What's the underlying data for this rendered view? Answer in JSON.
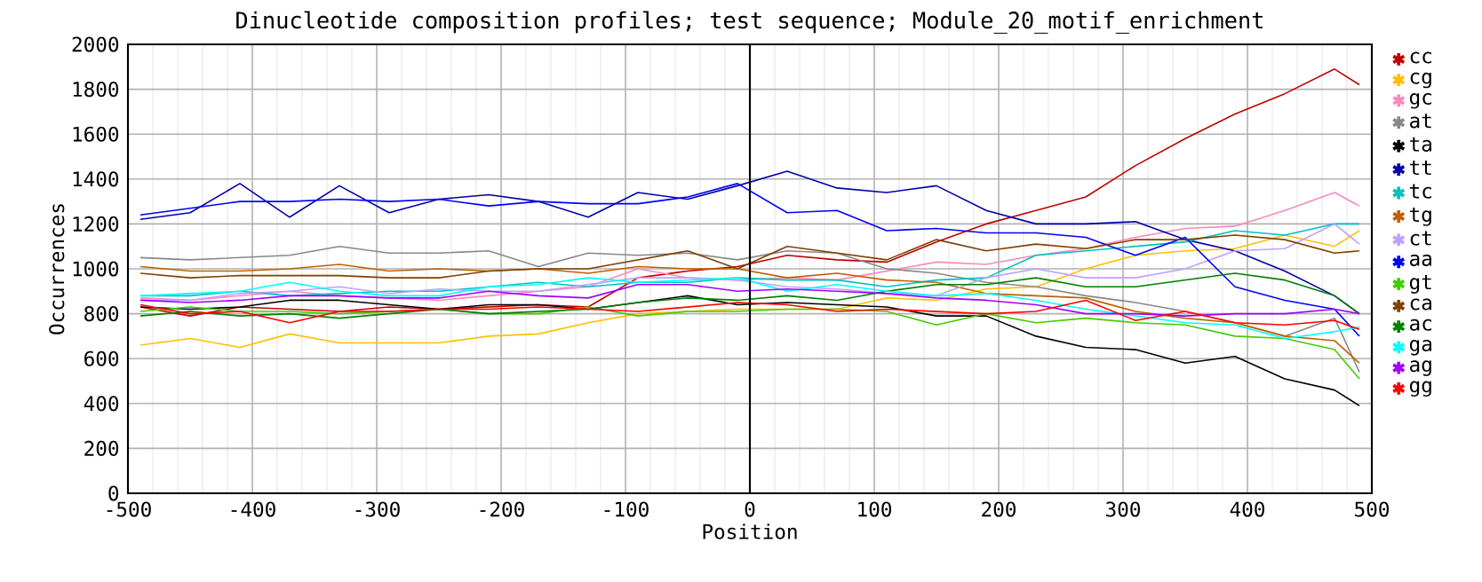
{
  "chart_data": {
    "type": "line",
    "title": "Dinucleotide composition profiles; test sequence; Module_20_motif_enrichment",
    "xlabel": "Position",
    "ylabel": "Occurrences",
    "x": [
      -490,
      -450,
      -410,
      -370,
      -330,
      -290,
      -250,
      -210,
      -170,
      -130,
      -90,
      -50,
      -10,
      30,
      70,
      110,
      150,
      190,
      230,
      270,
      310,
      350,
      390,
      430,
      470,
      490
    ],
    "xlim": [
      -500,
      500
    ],
    "ylim": [
      0,
      2000
    ],
    "xticks": [
      -500,
      -400,
      -300,
      -200,
      -100,
      0,
      100,
      200,
      300,
      400,
      500
    ],
    "yticks": [
      0,
      200,
      400,
      600,
      800,
      1000,
      1200,
      1400,
      1600,
      1800,
      2000
    ],
    "grid": true,
    "legend": "right",
    "marker": "none",
    "line_style": "solid",
    "ref_lines": [
      {
        "axis": "x",
        "value": 0,
        "color": "#000000"
      }
    ],
    "series": [
      {
        "name": "cc",
        "color": "#c00000",
        "values": [
          830,
          790,
          830,
          820,
          810,
          830,
          820,
          830,
          840,
          830,
          960,
          990,
          1010,
          1060,
          1040,
          1030,
          1120,
          1200,
          1260,
          1320,
          1460,
          1580,
          1690,
          1780,
          1890,
          1820
        ]
      },
      {
        "name": "cg",
        "color": "#ffc000",
        "values": [
          660,
          690,
          650,
          710,
          670,
          670,
          670,
          700,
          710,
          760,
          800,
          810,
          820,
          820,
          820,
          870,
          860,
          910,
          920,
          1000,
          1060,
          1080,
          1090,
          1150,
          1100,
          1170
        ]
      },
      {
        "name": "gc",
        "color": "#ff88bb",
        "values": [
          870,
          860,
          880,
          900,
          880,
          870,
          860,
          880,
          900,
          920,
          1000,
          960,
          950,
          960,
          950,
          990,
          1030,
          1020,
          1060,
          1090,
          1140,
          1180,
          1190,
          1260,
          1340,
          1280
        ]
      },
      {
        "name": "at",
        "color": "#888888",
        "values": [
          1050,
          1040,
          1050,
          1060,
          1100,
          1070,
          1070,
          1080,
          1010,
          1070,
          1060,
          1070,
          1040,
          1080,
          1070,
          1000,
          980,
          940,
          920,
          880,
          850,
          810,
          760,
          700,
          780,
          540
        ]
      },
      {
        "name": "ta",
        "color": "#000000",
        "values": [
          830,
          820,
          830,
          860,
          860,
          840,
          820,
          840,
          840,
          820,
          850,
          880,
          840,
          850,
          840,
          830,
          790,
          790,
          700,
          650,
          640,
          580,
          610,
          510,
          460,
          390
        ]
      },
      {
        "name": "tt",
        "color": "#0000aa",
        "values": [
          1220,
          1250,
          1380,
          1230,
          1370,
          1250,
          1310,
          1330,
          1300,
          1230,
          1340,
          1310,
          1370,
          1435,
          1360,
          1340,
          1370,
          1260,
          1200,
          1200,
          1210,
          1130,
          1080,
          990,
          880,
          800
        ]
      },
      {
        "name": "tc",
        "color": "#00c0c0",
        "values": [
          880,
          880,
          900,
          880,
          890,
          900,
          900,
          920,
          940,
          920,
          940,
          940,
          960,
          950,
          950,
          920,
          950,
          960,
          1060,
          1080,
          1100,
          1120,
          1170,
          1150,
          1200,
          1200
        ]
      },
      {
        "name": "tg",
        "color": "#c06000",
        "values": [
          1010,
          990,
          990,
          1000,
          1020,
          990,
          1000,
          990,
          1000,
          980,
          1010,
          1000,
          1000,
          960,
          980,
          950,
          940,
          890,
          880,
          870,
          810,
          780,
          760,
          700,
          680,
          580
        ]
      },
      {
        "name": "ct",
        "color": "#c0a0ff",
        "values": [
          860,
          860,
          890,
          900,
          920,
          890,
          910,
          900,
          900,
          930,
          960,
          960,
          950,
          920,
          910,
          890,
          880,
          960,
          1000,
          960,
          960,
          1000,
          1080,
          1090,
          1200,
          1110
        ]
      },
      {
        "name": "aa",
        "color": "#0000ff",
        "values": [
          1240,
          1270,
          1300,
          1300,
          1310,
          1300,
          1310,
          1280,
          1300,
          1290,
          1290,
          1320,
          1380,
          1250,
          1260,
          1170,
          1180,
          1160,
          1160,
          1140,
          1060,
          1140,
          920,
          860,
          820,
          700
        ]
      },
      {
        "name": "gt",
        "color": "#44cc00",
        "values": [
          810,
          830,
          810,
          810,
          800,
          810,
          820,
          800,
          800,
          830,
          790,
          810,
          810,
          820,
          820,
          810,
          750,
          800,
          760,
          780,
          760,
          750,
          700,
          690,
          640,
          510
        ]
      },
      {
        "name": "ca",
        "color": "#804000",
        "values": [
          980,
          960,
          970,
          970,
          970,
          960,
          960,
          990,
          1000,
          1000,
          1040,
          1080,
          1000,
          1100,
          1070,
          1040,
          1130,
          1080,
          1110,
          1090,
          1130,
          1130,
          1150,
          1130,
          1070,
          1080
        ]
      },
      {
        "name": "ac",
        "color": "#008000",
        "values": [
          790,
          810,
          790,
          800,
          780,
          800,
          820,
          800,
          810,
          820,
          850,
          870,
          860,
          880,
          860,
          900,
          930,
          930,
          960,
          920,
          920,
          950,
          980,
          950,
          880,
          800
        ]
      },
      {
        "name": "ga",
        "color": "#00ffff",
        "values": [
          880,
          890,
          900,
          940,
          900,
          880,
          880,
          920,
          930,
          960,
          940,
          950,
          960,
          900,
          930,
          900,
          880,
          890,
          860,
          820,
          790,
          760,
          750,
          690,
          720,
          740
        ]
      },
      {
        "name": "ag",
        "color": "#a000ff",
        "values": [
          860,
          850,
          860,
          880,
          880,
          870,
          870,
          900,
          880,
          870,
          930,
          930,
          900,
          910,
          900,
          890,
          870,
          860,
          840,
          800,
          800,
          790,
          800,
          800,
          820,
          800
        ]
      },
      {
        "name": "gg",
        "color": "#ff0000",
        "values": [
          840,
          800,
          810,
          760,
          810,
          810,
          820,
          820,
          830,
          820,
          810,
          830,
          850,
          840,
          810,
          820,
          810,
          800,
          810,
          860,
          770,
          810,
          760,
          750,
          770,
          730
        ]
      }
    ]
  }
}
